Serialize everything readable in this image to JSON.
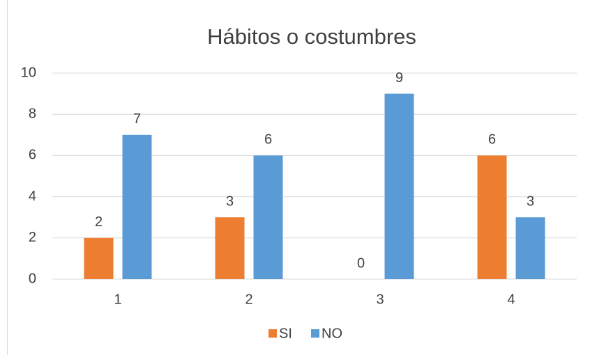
{
  "chart_data": {
    "type": "bar",
    "title": "Hábitos o costumbres",
    "categories": [
      "1",
      "2",
      "3",
      "4"
    ],
    "series": [
      {
        "name": "SI",
        "color": "#ed7d31",
        "values": [
          2,
          3,
          0,
          6
        ]
      },
      {
        "name": "NO",
        "color": "#5b9bd5",
        "values": [
          7,
          6,
          9,
          3
        ]
      }
    ],
    "ylim": [
      0,
      10
    ],
    "yticks": [
      0,
      2,
      4,
      6,
      8,
      10
    ],
    "grid": true,
    "legend": "bottom"
  }
}
